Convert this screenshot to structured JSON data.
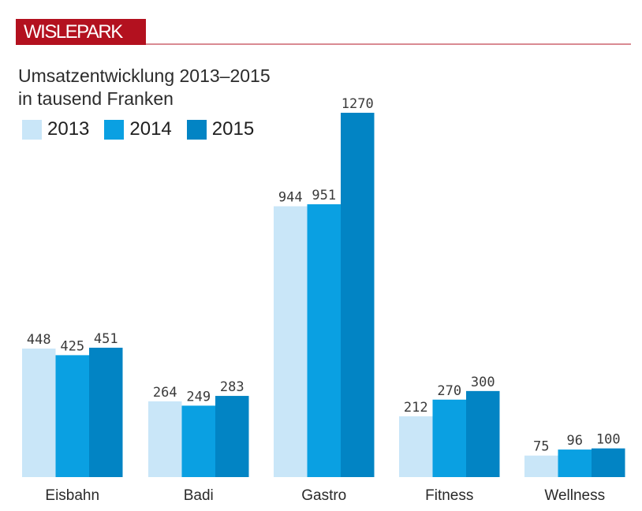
{
  "header": {
    "brand": "WISLEPARK",
    "brand_color": "#b3111f"
  },
  "chart_data": {
    "type": "bar",
    "title": "Umsatzentwicklung 2013–2015",
    "subtitle": "in tausend Franken",
    "xlabel": "",
    "ylabel": "",
    "ylim": [
      0,
      1270
    ],
    "grid": false,
    "legend_position": "top-left",
    "categories": [
      "Eisbahn",
      "Badi",
      "Gastro",
      "Fitness",
      "Wellness"
    ],
    "series": [
      {
        "name": "2013",
        "color": "#c9e6f8",
        "values": [
          448,
          264,
          944,
          212,
          75
        ]
      },
      {
        "name": "2014",
        "color": "#0aa0e2",
        "values": [
          425,
          249,
          951,
          270,
          96
        ]
      },
      {
        "name": "2015",
        "color": "#0284c4",
        "values": [
          451,
          283,
          1270,
          300,
          100
        ]
      }
    ]
  }
}
